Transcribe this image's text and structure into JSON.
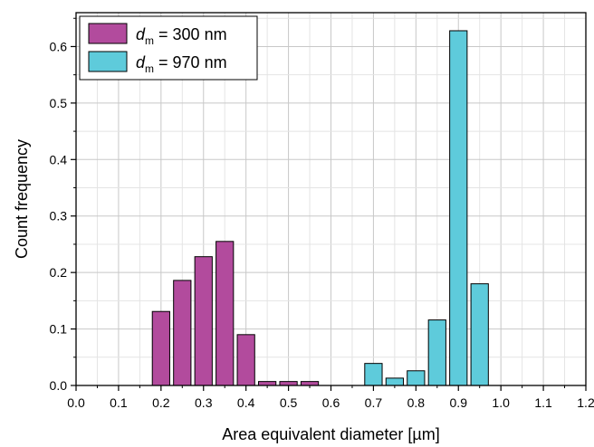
{
  "chart_data": {
    "type": "bar",
    "xlabel": "Area equivalent diameter [µm]",
    "ylabel": "Count frequency",
    "xlim": [
      0,
      1.2
    ],
    "ylim": [
      0,
      0.66
    ],
    "xticks": [
      "0.0",
      "0.1",
      "0.2",
      "0.3",
      "0.4",
      "0.5",
      "0.6",
      "0.7",
      "0.8",
      "0.9",
      "1.0",
      "1.1",
      "1.2"
    ],
    "yticks": [
      "0.0",
      "0.1",
      "0.2",
      "0.3",
      "0.4",
      "0.5",
      "0.6"
    ],
    "grid": true,
    "legend_position": "top-left",
    "bin_width": 0.05,
    "series": [
      {
        "name_prefix": "d",
        "name_sub": "m",
        "name_suffix": " = 300 nm",
        "color": "#b24b9d",
        "x": [
          0.2,
          0.25,
          0.3,
          0.35,
          0.4,
          0.45,
          0.5,
          0.55
        ],
        "values": [
          0.131,
          0.186,
          0.228,
          0.255,
          0.09,
          0.007,
          0.007,
          0.007
        ]
      },
      {
        "name_prefix": "d",
        "name_sub": "m",
        "name_suffix": " = 970 nm",
        "color": "#5ecbdb",
        "x": [
          0.7,
          0.75,
          0.8,
          0.85,
          0.9,
          0.95
        ],
        "values": [
          0.039,
          0.013,
          0.026,
          0.116,
          0.628,
          0.18
        ]
      }
    ]
  }
}
